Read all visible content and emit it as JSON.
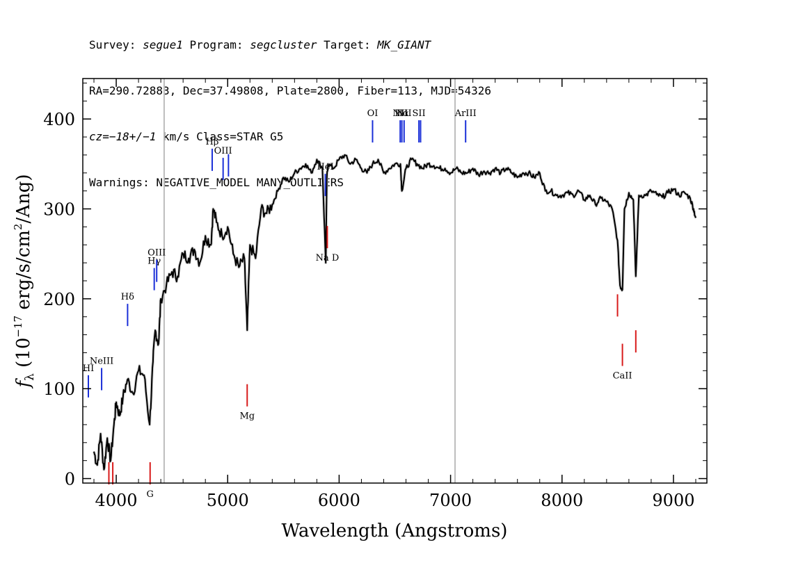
{
  "header": {
    "line1": {
      "survey_label": "Survey: ",
      "survey": "segue1",
      "program_label": " Program: ",
      "program": "segcluster",
      "target_label": " Target: ",
      "target": "MK_GIANT"
    },
    "line2": "RA=290.72883, Dec=37.49808, Plate=2800, Fiber=113, MJD=54326",
    "line3": {
      "cz": "cz=−18+/−1",
      "rest": " km/s Class=STAR G5"
    },
    "line4": "Warnings: NEGATIVE_MODEL MANY_OUTLIERS"
  },
  "chart_data": {
    "type": "line",
    "xlabel": "Wavelength (Angstroms)",
    "ylabel": "f_λ (10^-17 erg/s/cm^2/Ang)",
    "xlim": [
      3700,
      9300
    ],
    "ylim": [
      -5,
      445
    ],
    "x_ticks": [
      4000,
      5000,
      6000,
      7000,
      8000,
      9000
    ],
    "y_ticks": [
      0,
      100,
      200,
      300,
      400
    ],
    "grid": false,
    "series": [
      {
        "color": "#000000",
        "x": [
          3800,
          3830,
          3860,
          3890,
          3920,
          3950,
          3980,
          4000,
          4030,
          4060,
          4100,
          4150,
          4200,
          4250,
          4300,
          4330,
          4350,
          4380,
          4400,
          4450,
          4500,
          4550,
          4600,
          4650,
          4700,
          4750,
          4800,
          4850,
          4870,
          4900,
          4950,
          5000,
          5050,
          5100,
          5150,
          5175,
          5200,
          5250,
          5300,
          5350,
          5400,
          5450,
          5500,
          5550,
          5600,
          5650,
          5700,
          5750,
          5800,
          5850,
          5880,
          5890,
          5900,
          5950,
          6000,
          6050,
          6100,
          6150,
          6200,
          6250,
          6300,
          6350,
          6400,
          6450,
          6500,
          6550,
          6563,
          6600,
          6650,
          6700,
          6750,
          6800,
          6850,
          6900,
          6950,
          7000,
          7050,
          7100,
          7150,
          7200,
          7250,
          7300,
          7350,
          7400,
          7450,
          7500,
          7550,
          7600,
          7650,
          7700,
          7750,
          7800,
          7850,
          7900,
          7950,
          8000,
          8050,
          8100,
          8150,
          8200,
          8250,
          8300,
          8350,
          8400,
          8450,
          8498,
          8520,
          8542,
          8560,
          8600,
          8640,
          8662,
          8690,
          8750,
          8800,
          8850,
          8900,
          8950,
          9000,
          9050,
          9100,
          9150,
          9180,
          9200
        ],
        "y": [
          30,
          15,
          50,
          10,
          45,
          20,
          60,
          85,
          70,
          90,
          110,
          95,
          120,
          115,
          60,
          130,
          165,
          150,
          200,
          215,
          230,
          225,
          250,
          245,
          255,
          240,
          270,
          260,
          300,
          285,
          270,
          280,
          250,
          235,
          245,
          165,
          260,
          245,
          300,
          295,
          305,
          320,
          335,
          330,
          340,
          345,
          350,
          340,
          355,
          345,
          240,
          335,
          350,
          345,
          355,
          360,
          350,
          355,
          345,
          340,
          350,
          355,
          340,
          345,
          350,
          350,
          320,
          345,
          355,
          350,
          345,
          350,
          348,
          345,
          345,
          340,
          345,
          340,
          340,
          345,
          338,
          342,
          340,
          345,
          340,
          345,
          340,
          335,
          340,
          340,
          335,
          340,
          320,
          320,
          315,
          315,
          318,
          315,
          320,
          310,
          315,
          305,
          312,
          308,
          300,
          265,
          215,
          210,
          300,
          318,
          310,
          225,
          315,
          315,
          320,
          316,
          313,
          318,
          322,
          315,
          318,
          312,
          300,
          290
        ]
      }
    ],
    "emission_lines": [
      {
        "label": "HI",
        "x": 3750
      },
      {
        "label": "NeIII",
        "x": 3869
      },
      {
        "label": "Hδ",
        "x": 4102
      },
      {
        "label": "Hγ",
        "x": 4341
      },
      {
        "label": "OIII",
        "x": 4363
      },
      {
        "label": "Hβ",
        "x": 4861
      },
      {
        "label": "OIII",
        "x": 4959
      },
      {
        "label": "",
        "x": 5007
      },
      {
        "label": "HeI",
        "x": 5876
      },
      {
        "label": "OI",
        "x": 6300
      },
      {
        "label": "NII",
        "x": 6548
      },
      {
        "label": "Hα",
        "x": 6563
      },
      {
        "label": "NII",
        "x": 6583
      },
      {
        "label": "SII",
        "x": 6716
      },
      {
        "label": "",
        "x": 6731
      },
      {
        "label": "ArIII",
        "x": 7135
      }
    ],
    "absorption_lines": [
      {
        "label": "",
        "x": 3934
      },
      {
        "label": "",
        "x": 3969
      },
      {
        "label": "G",
        "x": 4304
      },
      {
        "label": "Mg",
        "x": 5175
      },
      {
        "label": "Na D",
        "x": 5894
      },
      {
        "label": "",
        "x": 8498
      },
      {
        "label": "CaII",
        "x": 8542
      },
      {
        "label": "",
        "x": 8662
      }
    ],
    "mask_lines_x": [
      4430,
      7040
    ]
  }
}
